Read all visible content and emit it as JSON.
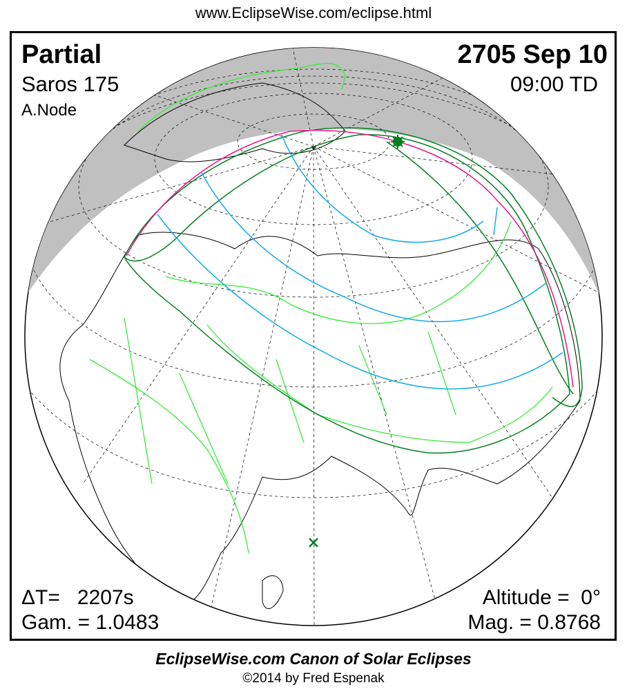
{
  "header": {
    "url": "www.EclipseWise.com/eclipse.html"
  },
  "eclipse": {
    "type": "Partial",
    "saros": "Saros 175",
    "node": "A.Node",
    "date": "2705 Sep 10",
    "time": "09:00 TD",
    "delta_t": "ΔT=   2207s",
    "gamma": "Gam. = 1.0483",
    "altitude": "Altitude =  0°",
    "magnitude": "Mag. = 0.8768"
  },
  "colors": {
    "night": "#c0c0c0",
    "borders": "#33ee33",
    "penumbra_limits": "#007f1f",
    "max_eclipse_line": "#ee1188",
    "magnitude_curves": "#11aaee"
  },
  "markers": {
    "greatest_eclipse": "star-icon",
    "subsolar": "x-icon"
  },
  "footer": {
    "canon": "EclipseWise.com Canon of Solar Eclipses",
    "copyright": "©2014 by Fred Espenak"
  }
}
